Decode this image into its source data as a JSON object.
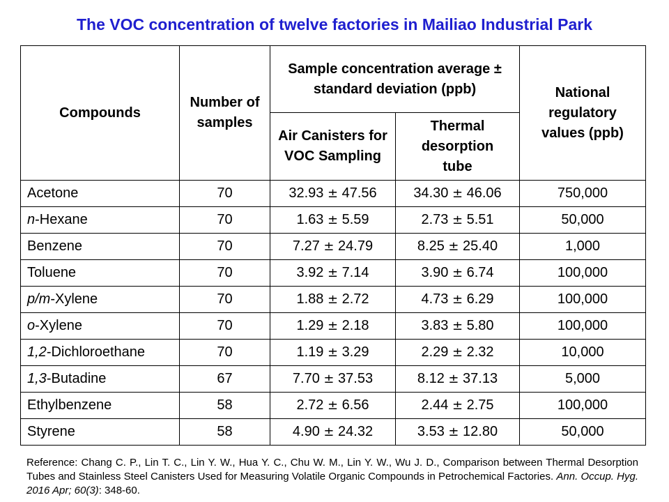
{
  "title": "The VOC concentration of twelve factories in Mailiao Industrial Park",
  "table": {
    "headers": {
      "compounds": "Compounds",
      "num_samples": "Number of samples",
      "sample_conc": "Sample concentration average ± standard deviation (ppb)",
      "air_canisters": "Air Canisters for VOC Sampling",
      "thermal_tube": "Thermal desorption tube",
      "national_values": "National regulatory values (ppb)"
    },
    "rows": [
      {
        "prefix": "",
        "name": "Acetone",
        "n": "70",
        "canister_mean": "32.93",
        "canister_sd": "47.56",
        "tube_mean": "34.30",
        "tube_sd": "46.06",
        "reg": "750,000"
      },
      {
        "prefix": "n",
        "name": "-Hexane",
        "n": "70",
        "canister_mean": "1.63",
        "canister_sd": "5.59",
        "tube_mean": "2.73",
        "tube_sd": "5.51",
        "reg": "50,000"
      },
      {
        "prefix": "",
        "name": "Benzene",
        "n": "70",
        "canister_mean": "7.27",
        "canister_sd": "24.79",
        "tube_mean": "8.25",
        "tube_sd": "25.40",
        "reg": "1,000"
      },
      {
        "prefix": "",
        "name": "Toluene",
        "n": "70",
        "canister_mean": "3.92",
        "canister_sd": "7.14",
        "tube_mean": "3.90",
        "tube_sd": "6.74",
        "reg": "100,000"
      },
      {
        "prefix": "p/m",
        "name": "-Xylene",
        "n": "70",
        "canister_mean": "1.88",
        "canister_sd": "2.72",
        "tube_mean": "4.73",
        "tube_sd": "6.29",
        "reg": "100,000"
      },
      {
        "prefix": "o",
        "name": "-Xylene",
        "n": "70",
        "canister_mean": "1.29",
        "canister_sd": "2.18",
        "tube_mean": "3.83",
        "tube_sd": "5.80",
        "reg": "100,000"
      },
      {
        "prefix": "1,2",
        "name": "-Dichloroethane",
        "n": "70",
        "canister_mean": "1.19",
        "canister_sd": "3.29",
        "tube_mean": "2.29",
        "tube_sd": "2.32",
        "reg": "10,000"
      },
      {
        "prefix": "1,3",
        "name": "-Butadine",
        "n": "67",
        "canister_mean": "7.70",
        "canister_sd": "37.53",
        "tube_mean": "8.12",
        "tube_sd": "37.13",
        "reg": "5,000"
      },
      {
        "prefix": "",
        "name": "Ethylbenzene",
        "n": "58",
        "canister_mean": "2.72",
        "canister_sd": "6.56",
        "tube_mean": "2.44",
        "tube_sd": "2.75",
        "reg": "100,000"
      },
      {
        "prefix": "",
        "name": "Styrene",
        "n": "58",
        "canister_mean": "4.90",
        "canister_sd": "24.32",
        "tube_mean": "3.53",
        "tube_sd": "12.80",
        "reg": "50,000"
      }
    ],
    "pm_symbol": "±"
  },
  "reference": {
    "text": "Reference: Chang C. P., Lin T. C., Lin Y. W., Hua Y. C., Chu W. M., Lin Y. W., Wu J. D., Comparison between Thermal Desorption Tubes and Stainless Steel Canisters Used for Measuring Volatile Organic Compounds in Petrochemical Factories.",
    "journal": "Ann. Occup. Hyg. 2016 Apr; 60(3)",
    "pages": ": 348-60."
  },
  "colors": {
    "title": "#1f1fcf",
    "text": "#000000",
    "border": "#000000",
    "background": "#ffffff"
  }
}
